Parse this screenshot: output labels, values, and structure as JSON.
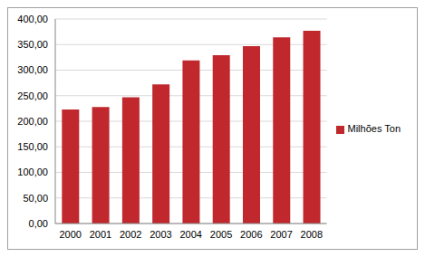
{
  "chart_data": {
    "type": "bar",
    "categories": [
      "2000",
      "2001",
      "2002",
      "2003",
      "2004",
      "2005",
      "2006",
      "2007",
      "2008"
    ],
    "series": [
      {
        "name": "Milhões Ton",
        "color": "#c0282d",
        "values": [
          223,
          228,
          247,
          272,
          319,
          329,
          347,
          364,
          377
        ]
      }
    ],
    "ylim": [
      0,
      400
    ],
    "yticks": [
      {
        "value": 0,
        "label": "0,00"
      },
      {
        "value": 50,
        "label": "50,00"
      },
      {
        "value": 100,
        "label": "100,00"
      },
      {
        "value": 150,
        "label": "150,00"
      },
      {
        "value": 200,
        "label": "200,00"
      },
      {
        "value": 250,
        "label": "250,00"
      },
      {
        "value": 300,
        "label": "300,00"
      },
      {
        "value": 350,
        "label": "350,00"
      },
      {
        "value": 400,
        "label": "400,00"
      }
    ],
    "grid": true,
    "legend": "right"
  }
}
